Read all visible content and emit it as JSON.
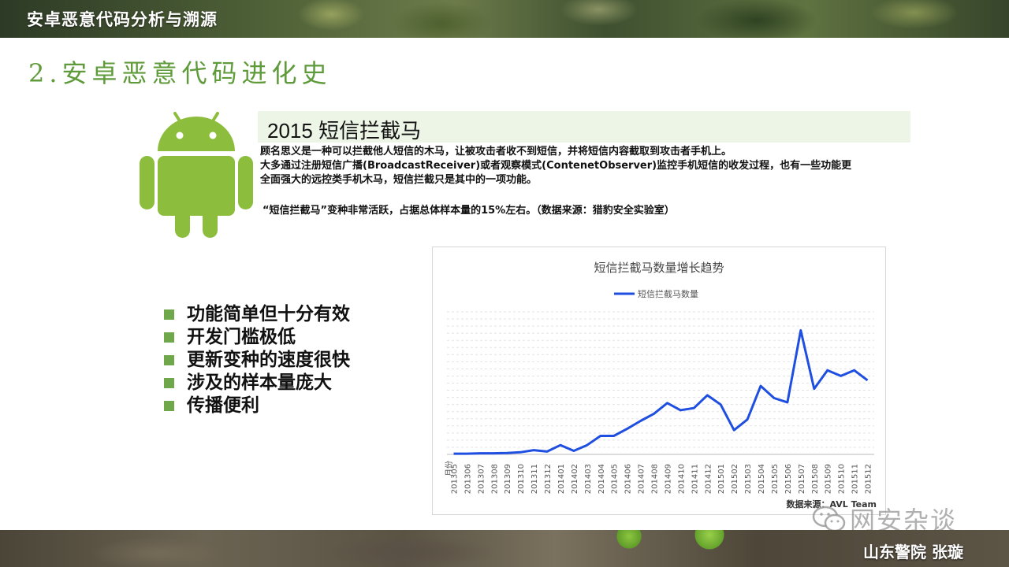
{
  "header": {
    "deck_title": "安卓恶意代码分析与溯源"
  },
  "section_title": "2.安卓恶意代码进化史",
  "content": {
    "heading": "2015 短信拦截马",
    "description_lines": [
      "顾名思义是一种可以拦截他人短信的木马，让被攻击者收不到短信，并将短信内容截取到攻击者手机上。",
      "大多通过注册短信广播(BroadcastReceiver)或者观察模式(ContenetObserver)监控手机短信的收发过程，也有一些功能更",
      "全面强大的远控类手机木马，短信拦截只是其中的一项功能。"
    ],
    "stat_note": "“短信拦截马”变种非常活跃，占据总体样本量的15%左右。（数据来源：猎豹安全实验室）"
  },
  "features": [
    "功能简单但十分有效",
    "开发门槛极低",
    "更新变种的速度很快",
    "涉及的样本量庞大",
    "传播便利"
  ],
  "chart_data": {
    "type": "line",
    "title": "短信拦截马数量增长趋势",
    "legend": "top-center",
    "grid": true,
    "x_axis_label": "月份",
    "source_label": "数据来源：AVL Team",
    "x": [
      "201305",
      "201306",
      "201307",
      "201308",
      "201309",
      "201310",
      "201311",
      "201312",
      "201401",
      "201402",
      "201403",
      "201404",
      "201405",
      "201406",
      "201407",
      "201408",
      "201409",
      "201410",
      "201411",
      "201412",
      "201501",
      "201502",
      "201503",
      "201504",
      "201505",
      "201506",
      "201507",
      "201508",
      "201509",
      "201510",
      "201511",
      "201512"
    ],
    "series": [
      {
        "name": "短信拦截马数量",
        "color": "#1f4fe0",
        "values": [
          0.5,
          0.5,
          0.8,
          0.8,
          1,
          1.5,
          3,
          2,
          6.5,
          2.5,
          6.5,
          13,
          13,
          18,
          23.5,
          28.5,
          36,
          31,
          32.5,
          41.5,
          35,
          17,
          24.5,
          48,
          39.5,
          36.5,
          87,
          46,
          59,
          55,
          59,
          52
        ]
      }
    ],
    "ylim": [
      0,
      100
    ]
  },
  "watermark": {
    "icon": "wechat-icon",
    "text": "网安杂谈"
  },
  "footer": {
    "author": "山东警院 张璇"
  },
  "colors": {
    "accent": "#6fa84a",
    "android": "#8dbd3d",
    "line": "#1f4fe0"
  }
}
